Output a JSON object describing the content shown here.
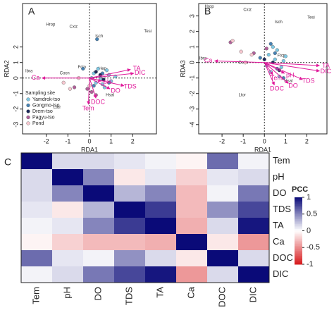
{
  "chart_data": [
    {
      "type": "biplot",
      "panel": "A",
      "xlabel": "RDA1",
      "ylabel": "RDA2",
      "xlim": [
        -3.1,
        3.1
      ],
      "ylim": [
        -3.6,
        4.8
      ],
      "xticks": [
        -2,
        -1,
        0,
        1,
        2
      ],
      "yticks": [
        -3,
        -2,
        -1,
        0,
        1,
        2
      ],
      "legend_title": "Sampling site",
      "arrow_color": "#e0199a",
      "series": [
        {
          "name": "Yamdrok-tso",
          "color": "#7ec8e3",
          "x": [
            0.2,
            0.5,
            0.8,
            1.0,
            0.6,
            0.3,
            0.9,
            1.2,
            0.4,
            0.7,
            0.1,
            0.5
          ],
          "y": [
            0.3,
            0.1,
            0.5,
            -0.2,
            -0.4,
            -0.3,
            0.2,
            0.1,
            0.6,
            -0.6,
            0.0,
            -0.1
          ]
        },
        {
          "name": "Gongmo-tso",
          "color": "#4682b4",
          "x": [
            0.35,
            0.6,
            0.9,
            -0.3,
            0.2
          ],
          "y": [
            2.5,
            0.3,
            -0.3,
            0.6,
            -0.5
          ]
        },
        {
          "name": "Drem-tso",
          "color": "#1c2a5a",
          "x": [
            0.5,
            0.65,
            0.3
          ],
          "y": [
            0.2,
            -0.1,
            0.4
          ]
        },
        {
          "name": "Pagyu-tso",
          "color": "#b0609a",
          "x": [
            -0.7,
            0.1,
            -0.1,
            0.3
          ],
          "y": [
            -0.6,
            -0.9,
            -0.7,
            -1.1
          ]
        },
        {
          "name": "Pond",
          "color": "#f8c8d0",
          "x": [
            -1.2,
            -0.5,
            -0.9,
            0.0
          ],
          "y": [
            -0.3,
            0.0,
            -0.7,
            -0.5
          ]
        }
      ],
      "arrows": [
        {
          "name": "TA",
          "x": 1.9,
          "y": 0.55
        },
        {
          "name": "DIC",
          "x": 2.05,
          "y": 0.3
        },
        {
          "name": "TDS",
          "x": 1.6,
          "y": -0.5
        },
        {
          "name": "DO",
          "x": 0.95,
          "y": -0.7
        },
        {
          "name": "pH",
          "x": 0.55,
          "y": -0.2
        },
        {
          "name": "DOC",
          "x": 0.3,
          "y": -1.3
        },
        {
          "name": "Tem",
          "x": -0.05,
          "y": -1.7
        },
        {
          "name": "Ca",
          "x": -2.2,
          "y": 0.0
        }
      ],
      "species": [
        {
          "name": "Hrop",
          "x": -1.8,
          "y": 3.45
        },
        {
          "name": "Cxiz",
          "x": -0.74,
          "y": 3.3
        },
        {
          "name": "Isch",
          "x": 0.45,
          "y": 2.7
        },
        {
          "name": "Tesi",
          "x": 2.7,
          "y": 3.0
        },
        {
          "name": "Ibra",
          "x": -2.8,
          "y": 0.45
        },
        {
          "name": "Cocn",
          "x": -1.15,
          "y": 0.3
        },
        {
          "name": "Fclo",
          "x": -0.35,
          "y": 0.7
        },
        {
          "name": "Ltor",
          "x": -1.5,
          "y": -1.9
        },
        {
          "name": "Hsal",
          "x": 0.95,
          "y": -1.1
        },
        {
          "name": "Hep",
          "x": 0.6,
          "y": 0.6
        }
      ]
    },
    {
      "type": "biplot",
      "panel": "B",
      "xlabel": "RDA1",
      "ylabel": "RDA3",
      "xlim": [
        -3.1,
        2.95
      ],
      "ylim": [
        -4.6,
        3.8
      ],
      "xticks": [
        -2,
        -1,
        0,
        1,
        2
      ],
      "yticks": [
        -4,
        -3,
        -2,
        -1,
        0,
        1,
        2,
        3
      ],
      "arrow_color": "#e0199a",
      "series": [
        {
          "color": "#7ec8e3",
          "x": [
            0.2,
            0.5,
            0.8,
            0.3,
            0.6,
            0.9,
            0.1,
            0.4,
            0.7,
            1.0
          ],
          "y": [
            0.5,
            0.2,
            -0.3,
            -0.6,
            0.8,
            0.1,
            -0.2,
            1.0,
            -0.9,
            0.4
          ]
        },
        {
          "color": "#4682b4",
          "x": [
            0.3,
            0.6,
            -0.2,
            0.9,
            0.5
          ],
          "y": [
            1.2,
            -0.4,
            0.3,
            -1.0,
            0.6
          ]
        },
        {
          "color": "#1c2a5a",
          "x": [
            0.0,
            0.4,
            0.7
          ],
          "y": [
            0.2,
            0.0,
            -0.5
          ]
        },
        {
          "color": "#b0609a",
          "x": [
            -1.6,
            -0.5,
            0.1
          ],
          "y": [
            1.3,
            0.6,
            0.9
          ]
        },
        {
          "color": "#f8c8d0",
          "x": [
            -1.5,
            -1.1,
            -0.6,
            -0.9
          ],
          "y": [
            1.4,
            0.7,
            0.5,
            0.0
          ]
        }
      ],
      "arrows": [
        {
          "name": "Ca",
          "x": -2.35,
          "y": 0.1
        },
        {
          "name": "TA",
          "x": 2.6,
          "y": -0.2
        },
        {
          "name": "DIC",
          "x": 2.6,
          "y": -0.55
        },
        {
          "name": "TDS",
          "x": 1.8,
          "y": -1.1
        },
        {
          "name": "DO",
          "x": 1.13,
          "y": -1.35
        },
        {
          "name": "DOC",
          "x": 0.47,
          "y": -1.45
        },
        {
          "name": "pH",
          "x": 0.95,
          "y": -0.7
        },
        {
          "name": "Tem",
          "x": 0.4,
          "y": -0.8
        }
      ],
      "species": [
        {
          "name": "Hrop",
          "x": -2.6,
          "y": 3.6
        },
        {
          "name": "Cxiz",
          "x": -0.8,
          "y": 3.4
        },
        {
          "name": "Isch",
          "x": 0.67,
          "y": 2.6
        },
        {
          "name": "Tesi",
          "x": 2.2,
          "y": 2.9
        },
        {
          "name": "Ibra",
          "x": -2.9,
          "y": 0.27
        },
        {
          "name": "Cocn",
          "x": -1.0,
          "y": 0.0
        },
        {
          "name": "Ltor",
          "x": -1.05,
          "y": -2.1
        },
        {
          "name": "Hsal",
          "x": 1.13,
          "y": -1.2
        },
        {
          "name": "Ftcp",
          "x": 0.8,
          "y": 0.45
        }
      ]
    },
    {
      "type": "heatmap",
      "panel": "C",
      "categories": [
        "Tem",
        "pH",
        "DO",
        "TDS",
        "TA",
        "Ca",
        "DOC",
        "DIC"
      ],
      "matrix": [
        [
          1,
          0.15,
          0.15,
          0.1,
          0.05,
          -0.05,
          0.6,
          0.05
        ],
        [
          0.15,
          1,
          0.5,
          -0.1,
          0.1,
          -0.2,
          0.1,
          0.15
        ],
        [
          0.15,
          0.5,
          1,
          0.3,
          0.5,
          -0.3,
          0.05,
          0.55
        ],
        [
          0.1,
          -0.1,
          0.3,
          1,
          0.8,
          -0.3,
          0.45,
          0.75
        ],
        [
          0.05,
          0.1,
          0.5,
          0.8,
          1,
          -0.35,
          0.15,
          0.95
        ],
        [
          -0.05,
          -0.2,
          -0.3,
          -0.3,
          -0.35,
          1,
          -0.1,
          -0.45
        ],
        [
          0.6,
          0.1,
          0.05,
          0.45,
          0.15,
          -0.1,
          1,
          0.15
        ],
        [
          0.05,
          0.15,
          0.55,
          0.75,
          0.95,
          -0.45,
          0.15,
          1
        ]
      ],
      "colorbar_title": "PCC",
      "clim": [
        -1,
        1
      ],
      "colorbar_ticks": [
        1,
        0.5,
        0,
        -0.5,
        -1
      ],
      "color_low": "#d7191c",
      "color_mid": "#ffffff",
      "color_high": "#0a0a78"
    }
  ]
}
